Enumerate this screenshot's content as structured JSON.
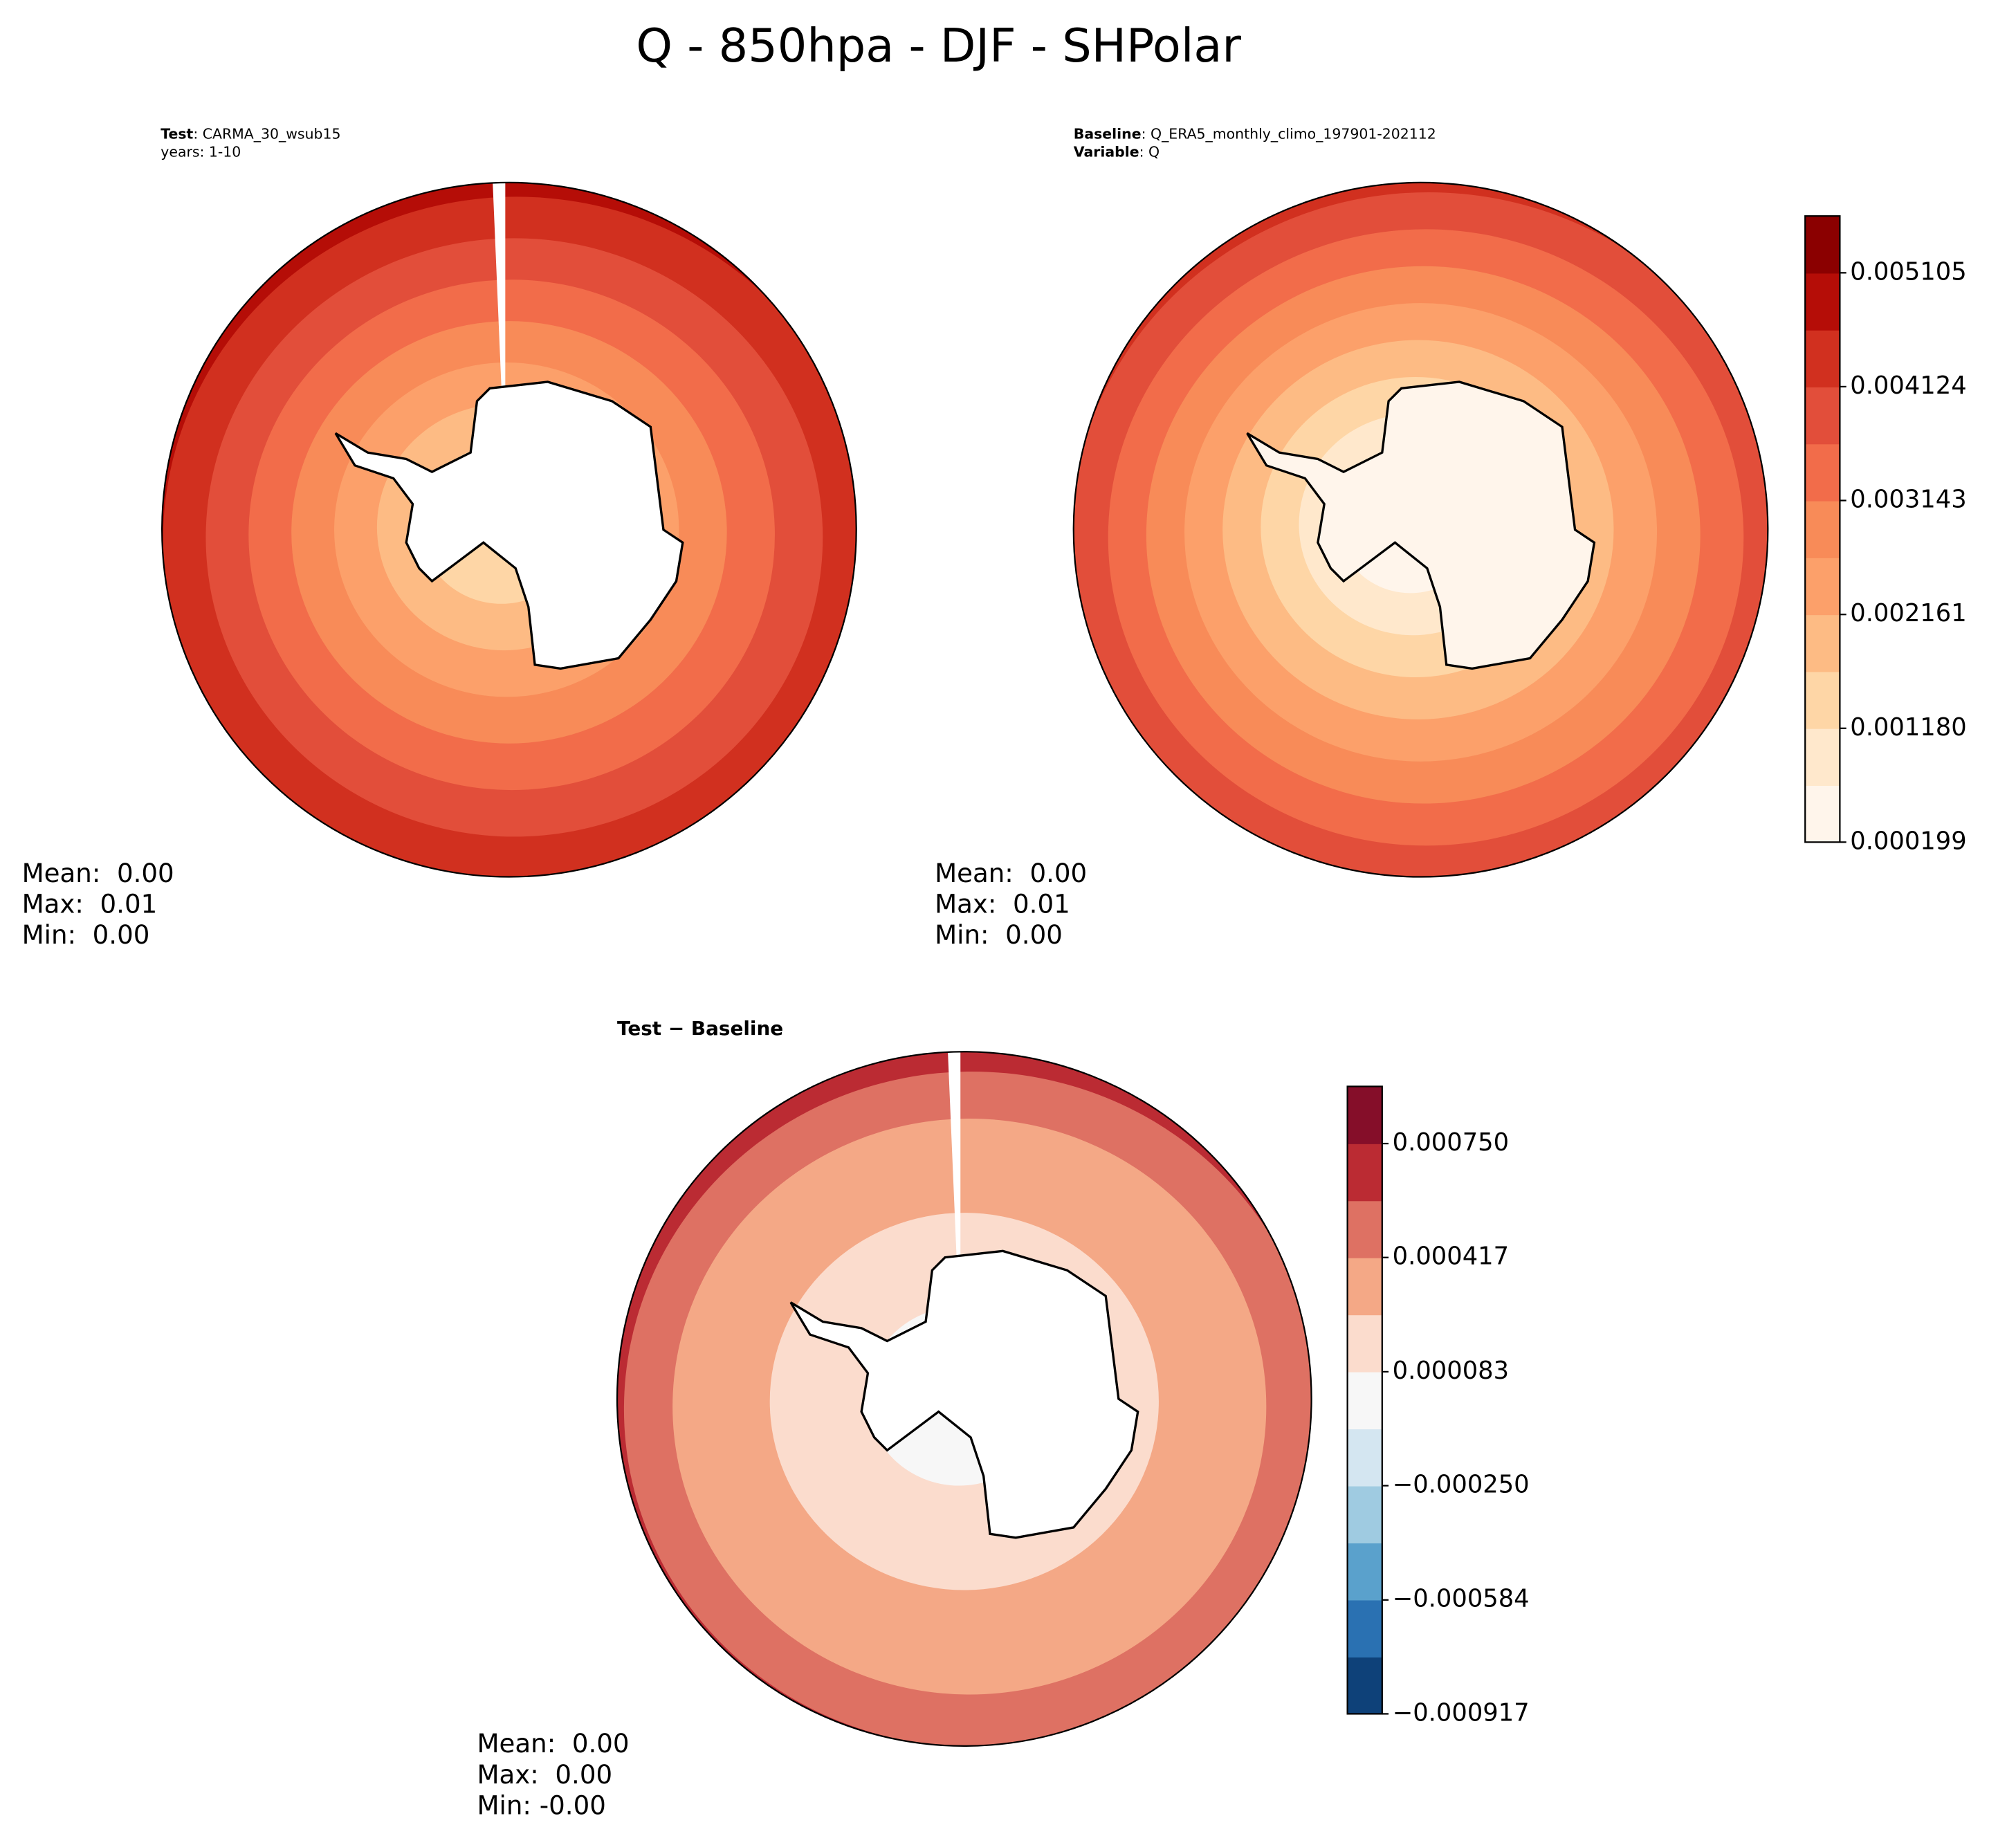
{
  "title": "Q - 850hpa - DJF - SHPolar",
  "panels": [
    {
      "header": [
        {
          "label": "Test",
          "value": ": CARMA_30_wsub15"
        },
        {
          "value": "years: 1-10"
        }
      ],
      "stats": [
        "Mean:  0.00",
        "Max:  0.01",
        "Min:  0.00"
      ]
    },
    {
      "header": [
        {
          "label": "Baseline",
          "value": ": Q_ERA5_monthly_climo_197901-202112"
        },
        {
          "label": "Variable",
          "value": ": Q"
        }
      ],
      "stats": [
        "Mean:  0.00",
        "Max:  0.01",
        "Min:  0.00"
      ],
      "colorbar": {
        "lim": [
          0.000199,
          0.0055945
        ],
        "ticks": [
          {
            "value": 0.000199,
            "label": "0.000199"
          },
          {
            "value": 0.00118,
            "label": "0.001180"
          },
          {
            "value": 0.002161,
            "label": "0.002161"
          },
          {
            "value": 0.003143,
            "label": "0.003143"
          },
          {
            "value": 0.004124,
            "label": "0.004124"
          },
          {
            "value": 0.005105,
            "label": "0.005105"
          }
        ],
        "colors": [
          "#fff5eb",
          "#ffe8cc",
          "#fed6a6",
          "#fdbb84",
          "#fca06a",
          "#f88b58",
          "#f26c4a",
          "#e24e3a",
          "#d1301f",
          "#b50d07",
          "#8b0000"
        ]
      }
    },
    {
      "header": [
        {
          "label": "Test − Baseline"
        }
      ],
      "stats": [
        "Mean:  0.00",
        "Max:  0.00",
        "Min: -0.00"
      ],
      "colorbar": {
        "lim": [
          -0.000917,
          0.000917
        ],
        "ticks": [
          {
            "value": -0.000917,
            "label": "−0.000917"
          },
          {
            "value": -0.000584,
            "label": "−0.000584"
          },
          {
            "value": -0.00025,
            "label": "−0.000250"
          },
          {
            "value": 8.3e-05,
            "label": "0.000083"
          },
          {
            "value": 0.000417,
            "label": "0.000417"
          },
          {
            "value": 0.00075,
            "label": "0.000750"
          }
        ],
        "colors": [
          "#0e4179",
          "#2a71b2",
          "#5aa1cc",
          "#9fcbe1",
          "#d4e6f1",
          "#f7f7f7",
          "#fbdccd",
          "#f4a886",
          "#de7163",
          "#bb2b33",
          "#850e29"
        ]
      }
    }
  ]
}
